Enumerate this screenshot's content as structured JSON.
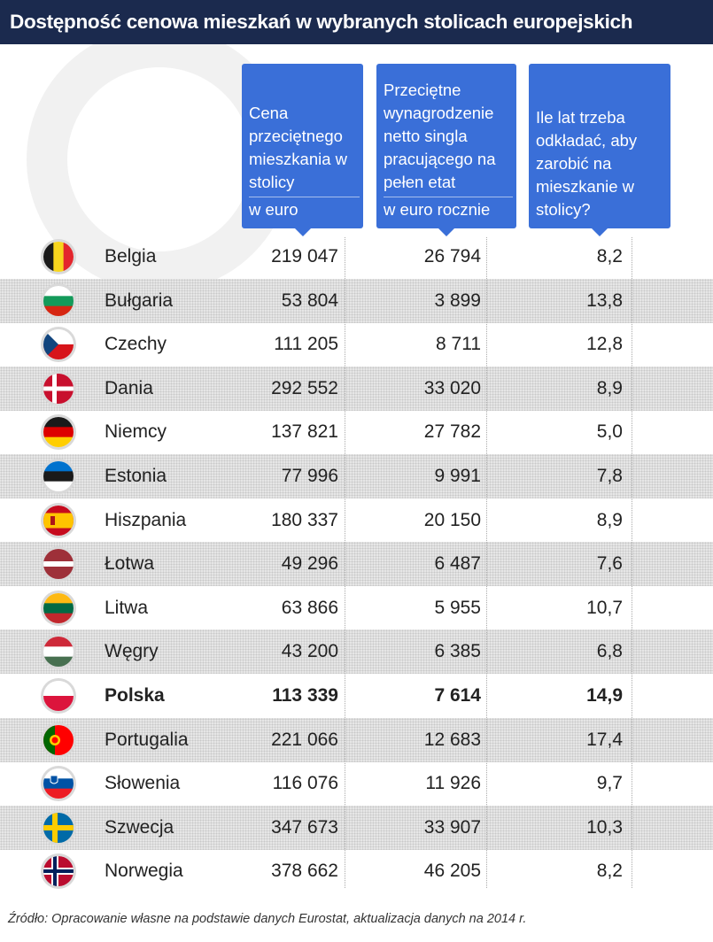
{
  "title": "Dostępność cenowa mieszkań w wybranych stolicach europejskich",
  "headers": {
    "price": {
      "text": "Cena przeciętnego mieszkania w stolicy",
      "unit": "w euro"
    },
    "salary": {
      "text": "Przeciętne wynagrodzenie netto singla pracującego na pełen etat",
      "unit": "w euro rocznie"
    },
    "years": {
      "text": "Ile lat trzeba odkładać, aby zarobić na mieszkanie w stolicy?"
    }
  },
  "chart_data": {
    "type": "table",
    "title": "Dostępność cenowa mieszkań w wybranych stolicach europejskich",
    "columns": [
      "Cena przeciętnego mieszkania w stolicy (w euro)",
      "Przeciętne wynagrodzenie netto singla pracującego na pełen etat (w euro rocznie)",
      "Ile lat trzeba odkładać, aby zarobić na mieszkanie w stolicy?"
    ],
    "rows": [
      {
        "country": "Belgia",
        "flag": "be",
        "price": "219 047",
        "salary": "26 794",
        "years": "8,2"
      },
      {
        "country": "Bułgaria",
        "flag": "bg",
        "price": "53 804",
        "salary": "3 899",
        "years": "13,8"
      },
      {
        "country": "Czechy",
        "flag": "cz",
        "price": "111 205",
        "salary": "8 711",
        "years": "12,8"
      },
      {
        "country": "Dania",
        "flag": "dk",
        "price": "292 552",
        "salary": "33 020",
        "years": "8,9"
      },
      {
        "country": "Niemcy",
        "flag": "de",
        "price": "137 821",
        "salary": "27 782",
        "years": "5,0"
      },
      {
        "country": "Estonia",
        "flag": "ee",
        "price": "77 996",
        "salary": "9 991",
        "years": "7,8"
      },
      {
        "country": "Hiszpania",
        "flag": "es",
        "price": "180 337",
        "salary": "20 150",
        "years": "8,9"
      },
      {
        "country": "Łotwa",
        "flag": "lv",
        "price": "49 296",
        "salary": "6 487",
        "years": "7,6"
      },
      {
        "country": "Litwa",
        "flag": "lt",
        "price": "63 866",
        "salary": "5 955",
        "years": "10,7"
      },
      {
        "country": "Węgry",
        "flag": "hu",
        "price": "43 200",
        "salary": "6 385",
        "years": "6,8"
      },
      {
        "country": "Polska",
        "flag": "pl",
        "price": "113 339",
        "salary": "7 614",
        "years": "14,9",
        "highlight": true
      },
      {
        "country": "Portugalia",
        "flag": "pt",
        "price": "221 066",
        "salary": "12 683",
        "years": "17,4"
      },
      {
        "country": "Słowenia",
        "flag": "si",
        "price": "116 076",
        "salary": "11 926",
        "years": "9,7"
      },
      {
        "country": "Szwecja",
        "flag": "se",
        "price": "347 673",
        "salary": "33 907",
        "years": "10,3"
      },
      {
        "country": "Norwegia",
        "flag": "no",
        "price": "378 662",
        "salary": "46 205",
        "years": "8,2"
      }
    ]
  },
  "source": "Źródło: Opracowanie własne na podstawie danych Eurostat, aktualizacja danych na 2014 r.",
  "colors": {
    "title_bg": "#1b2a4e",
    "header_bg": "#3a6fd8",
    "stripe": "#e6e6e6"
  }
}
